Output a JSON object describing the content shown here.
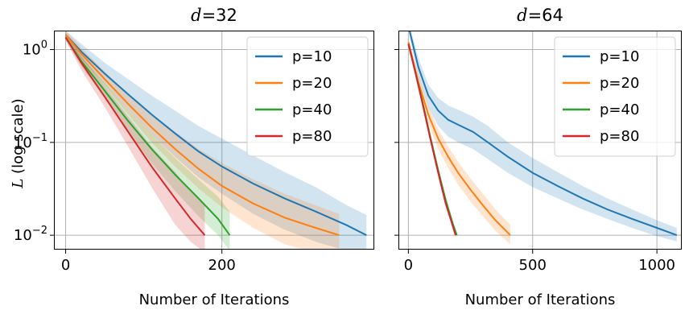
{
  "figure": {
    "ylabel_symbol": "L",
    "ylabel_rest": " (log scale)",
    "xlabel": "Number of Iterations"
  },
  "colors": {
    "p=10": "#1f77b4",
    "p=20": "#ff7f0e",
    "p=40": "#2ca02c",
    "p=80": "#d62728"
  },
  "chart_data": [
    {
      "type": "line",
      "title_symbol": "d",
      "title_rest": "=32",
      "yscale": "log",
      "xlim": [
        -15,
        395
      ],
      "ylim": [
        0.007,
        1.6
      ],
      "xticks": [
        0,
        200
      ],
      "yticks": [
        {
          "value": 1,
          "base": "10",
          "exp": "0"
        },
        {
          "value": 0.1,
          "base": "10",
          "exp": "−1"
        },
        {
          "value": 0.01,
          "base": "10",
          "exp": "−2"
        }
      ],
      "grid": true,
      "legend": "top-right",
      "series": [
        {
          "name": "p=10",
          "color": "#1f77b4",
          "x": [
            0,
            20,
            50,
            80,
            110,
            140,
            170,
            200,
            240,
            280,
            320,
            360,
            385
          ],
          "y": [
            1.45,
            0.95,
            0.55,
            0.33,
            0.2,
            0.125,
            0.08,
            0.055,
            0.036,
            0.025,
            0.018,
            0.0128,
            0.01
          ],
          "lower": [
            1.3,
            0.8,
            0.42,
            0.22,
            0.12,
            0.07,
            0.042,
            0.028,
            0.017,
            0.0115,
            0.0085,
            0.0068,
            0.0064
          ],
          "upper": [
            1.6,
            1.15,
            0.72,
            0.48,
            0.32,
            0.22,
            0.15,
            0.11,
            0.072,
            0.048,
            0.033,
            0.021,
            0.0165
          ]
        },
        {
          "name": "p=20",
          "color": "#ff7f0e",
          "x": [
            0,
            20,
            50,
            80,
            110,
            140,
            170,
            200,
            240,
            280,
            320,
            350
          ],
          "y": [
            1.45,
            0.9,
            0.48,
            0.26,
            0.145,
            0.085,
            0.052,
            0.034,
            0.022,
            0.0155,
            0.012,
            0.01
          ],
          "lower": [
            1.3,
            0.78,
            0.4,
            0.2,
            0.1,
            0.055,
            0.032,
            0.02,
            0.012,
            0.008,
            0.0065,
            0.0062
          ],
          "upper": [
            1.6,
            1.05,
            0.58,
            0.33,
            0.2,
            0.13,
            0.085,
            0.06,
            0.04,
            0.028,
            0.021,
            0.017
          ]
        },
        {
          "name": "p=40",
          "color": "#2ca02c",
          "x": [
            0,
            20,
            50,
            80,
            110,
            140,
            170,
            195,
            210
          ],
          "y": [
            1.35,
            0.75,
            0.36,
            0.17,
            0.085,
            0.045,
            0.025,
            0.015,
            0.01
          ],
          "lower": [
            1.25,
            0.66,
            0.3,
            0.13,
            0.06,
            0.03,
            0.016,
            0.01,
            0.0068
          ],
          "upper": [
            1.45,
            0.86,
            0.43,
            0.22,
            0.12,
            0.068,
            0.04,
            0.026,
            0.018
          ]
        },
        {
          "name": "p=80",
          "color": "#d62728",
          "x": [
            0,
            20,
            50,
            80,
            110,
            140,
            160,
            178
          ],
          "y": [
            1.35,
            0.72,
            0.31,
            0.13,
            0.055,
            0.025,
            0.015,
            0.01
          ],
          "lower": [
            1.25,
            0.6,
            0.24,
            0.09,
            0.033,
            0.013,
            0.0085,
            0.0065
          ],
          "upper": [
            1.45,
            0.85,
            0.4,
            0.19,
            0.09,
            0.048,
            0.03,
            0.022
          ]
        }
      ]
    },
    {
      "type": "line",
      "title_symbol": "d",
      "title_rest": "=64",
      "yscale": "log",
      "xlim": [
        -40,
        1100
      ],
      "ylim": [
        0.007,
        1.6
      ],
      "xticks": [
        0,
        500,
        1000
      ],
      "yticks": [
        {
          "value": 1,
          "base": "",
          "exp": ""
        },
        {
          "value": 0.1,
          "base": "",
          "exp": ""
        },
        {
          "value": 0.01,
          "base": "",
          "exp": ""
        }
      ],
      "grid": true,
      "legend": "top-right",
      "series": [
        {
          "name": "p=10",
          "color": "#1f77b4",
          "x": [
            0,
            40,
            80,
            120,
            160,
            200,
            260,
            320,
            400,
            500,
            600,
            700,
            800,
            900,
            1000,
            1080
          ],
          "y": [
            1.8,
            0.65,
            0.32,
            0.22,
            0.175,
            0.155,
            0.13,
            0.1,
            0.07,
            0.047,
            0.034,
            0.025,
            0.019,
            0.015,
            0.012,
            0.01
          ],
          "lower": [
            1.6,
            0.5,
            0.24,
            0.15,
            0.115,
            0.1,
            0.085,
            0.066,
            0.047,
            0.033,
            0.025,
            0.019,
            0.015,
            0.012,
            0.0098,
            0.0086
          ],
          "upper": [
            2.0,
            0.82,
            0.42,
            0.3,
            0.25,
            0.225,
            0.19,
            0.15,
            0.1,
            0.068,
            0.048,
            0.034,
            0.025,
            0.019,
            0.0145,
            0.012
          ]
        },
        {
          "name": "p=20",
          "color": "#ff7f0e",
          "x": [
            0,
            40,
            80,
            120,
            160,
            200,
            250,
            300,
            350,
            410
          ],
          "y": [
            1.2,
            0.45,
            0.2,
            0.11,
            0.07,
            0.047,
            0.031,
            0.021,
            0.0145,
            0.01
          ],
          "lower": [
            1.1,
            0.38,
            0.16,
            0.085,
            0.053,
            0.035,
            0.023,
            0.016,
            0.0112,
            0.008
          ],
          "upper": [
            1.32,
            0.54,
            0.25,
            0.14,
            0.09,
            0.062,
            0.041,
            0.028,
            0.019,
            0.013
          ]
        },
        {
          "name": "p=40",
          "color": "#2ca02c",
          "x": [
            0,
            30,
            60,
            90,
            120,
            150,
            180,
            195
          ],
          "y": [
            1.15,
            0.55,
            0.25,
            0.11,
            0.05,
            0.024,
            0.013,
            0.01
          ],
          "lower": [
            1.1,
            0.52,
            0.235,
            0.103,
            0.047,
            0.022,
            0.012,
            0.0094
          ],
          "upper": [
            1.2,
            0.58,
            0.265,
            0.117,
            0.053,
            0.026,
            0.014,
            0.0106
          ]
        },
        {
          "name": "p=80",
          "color": "#d62728",
          "x": [
            0,
            30,
            60,
            90,
            120,
            150,
            175,
            190
          ],
          "y": [
            1.15,
            0.54,
            0.24,
            0.105,
            0.047,
            0.022,
            0.0135,
            0.01
          ],
          "lower": [
            1.1,
            0.51,
            0.225,
            0.098,
            0.044,
            0.0205,
            0.0126,
            0.0094
          ],
          "upper": [
            1.2,
            0.57,
            0.255,
            0.112,
            0.05,
            0.0235,
            0.0144,
            0.0106
          ]
        }
      ]
    }
  ]
}
